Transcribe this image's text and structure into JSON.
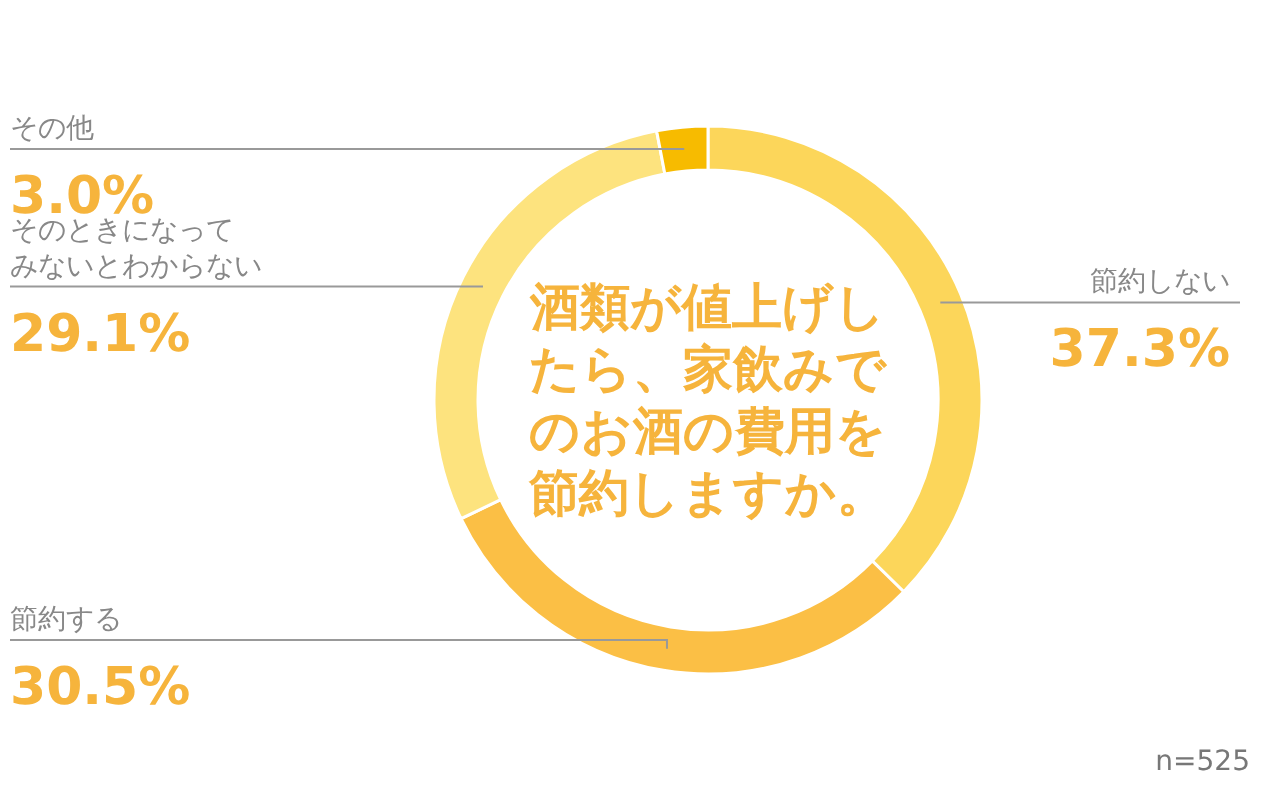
{
  "chart_data": {
    "type": "donut",
    "title": "酒類が値上げしたら、家飲みでのお酒の費用を節約しますか。",
    "categories": [
      "節約しない",
      "節約する",
      "そのときになってみないとわからない",
      "その他"
    ],
    "values": [
      37.3,
      30.5,
      29.1,
      3.0
    ],
    "value_labels": [
      "37.3%",
      "30.5%",
      "29.1%",
      "3.0%"
    ],
    "colors": [
      "#fcd65a",
      "#fbbf45",
      "#fde37e",
      "#f7bb00"
    ],
    "annotations": [
      "n=525"
    ]
  }
}
